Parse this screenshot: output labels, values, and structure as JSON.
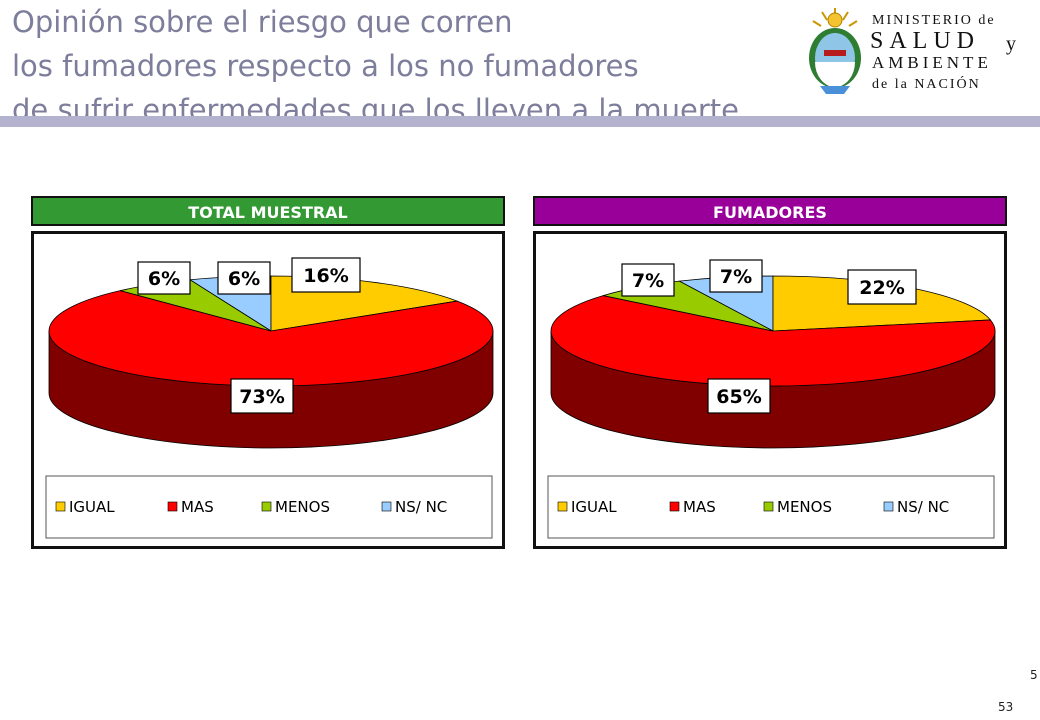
{
  "header": {
    "title_lines": [
      "Opinión sobre el riesgo que corren",
      "los fumadores respecto a los no fumadores",
      "de sufrir enfermedades que los lleven a la muerte"
    ],
    "ministry": {
      "line1": "MINISTERIO de",
      "line2": "SALUD",
      "line2b": "y",
      "line3": "AMBIENTE",
      "line4": "de la NACIÓN"
    }
  },
  "colors": {
    "band_total": "#339933",
    "band_fumadores": "#990099",
    "IGUAL": "#ffcc00",
    "MAS": "#ff0000",
    "MENOS": "#99cc00",
    "NS/ NC": "#99ccff",
    "MAS_side": "#800000"
  },
  "chart_data": [
    {
      "type": "pie",
      "title": "TOTAL MUESTRAL",
      "categories": [
        "IGUAL",
        "MAS",
        "MENOS",
        "NS/ NC"
      ],
      "values": [
        16,
        73,
        6,
        6
      ],
      "labels": [
        "16%",
        "73%",
        "6%",
        "6%"
      ],
      "legend": "bottom"
    },
    {
      "type": "pie",
      "title": "FUMADORES",
      "categories": [
        "IGUAL",
        "MAS",
        "MENOS",
        "NS/ NC"
      ],
      "values": [
        22,
        65,
        7,
        7
      ],
      "labels": [
        "22%",
        "65%",
        "7%",
        "7%"
      ],
      "legend": "bottom"
    }
  ],
  "footer": {
    "page_a": "5",
    "page_b": "53"
  }
}
